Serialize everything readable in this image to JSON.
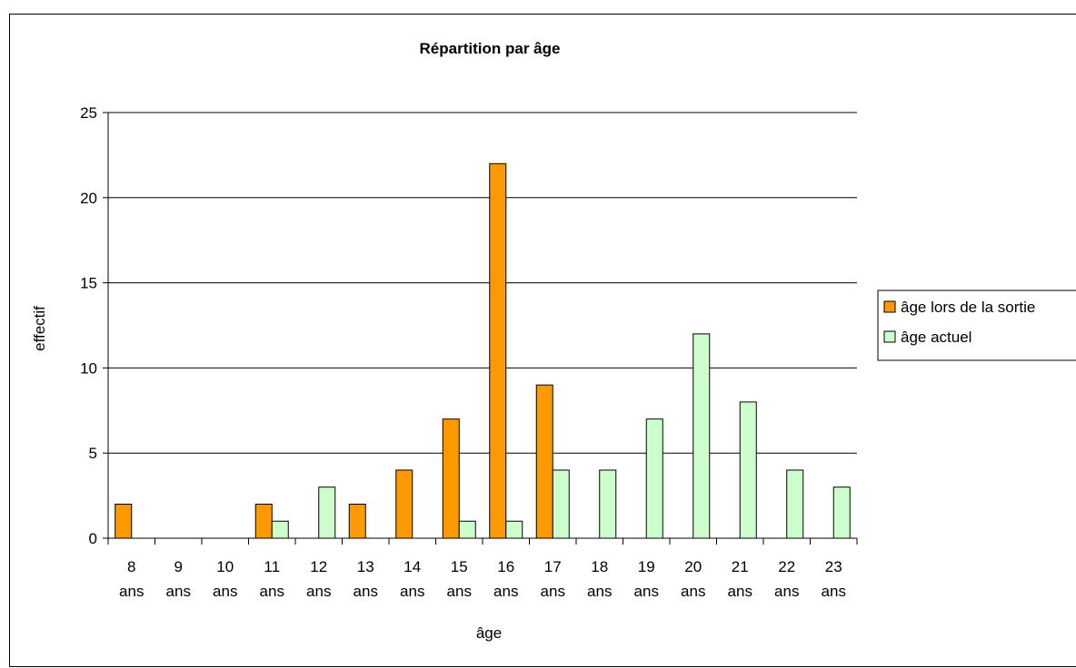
{
  "chart_data": {
    "type": "bar",
    "title": "Répartition par âge",
    "xlabel": "âge",
    "ylabel": "effectif",
    "ylim": [
      0,
      25
    ],
    "yticks": [
      0,
      5,
      10,
      15,
      20,
      25
    ],
    "categories": [
      {
        "num": "8",
        "unit": "ans"
      },
      {
        "num": "9",
        "unit": "ans"
      },
      {
        "num": "10",
        "unit": "ans"
      },
      {
        "num": "11",
        "unit": "ans"
      },
      {
        "num": "12",
        "unit": "ans"
      },
      {
        "num": "13",
        "unit": "ans"
      },
      {
        "num": "14",
        "unit": "ans"
      },
      {
        "num": "15",
        "unit": "ans"
      },
      {
        "num": "16",
        "unit": "ans"
      },
      {
        "num": "17",
        "unit": "ans"
      },
      {
        "num": "18",
        "unit": "ans"
      },
      {
        "num": "19",
        "unit": "ans"
      },
      {
        "num": "20",
        "unit": "ans"
      },
      {
        "num": "21",
        "unit": "ans"
      },
      {
        "num": "22",
        "unit": "ans"
      },
      {
        "num": "23",
        "unit": "ans"
      }
    ],
    "series": [
      {
        "name": "âge lors de la sortie",
        "color": "#FF9900",
        "values": [
          2,
          0,
          0,
          2,
          0,
          2,
          4,
          7,
          22,
          9,
          0,
          0,
          0,
          0,
          0,
          0
        ]
      },
      {
        "name": "âge actuel",
        "color": "#CCFFCC",
        "values": [
          0,
          0,
          0,
          1,
          3,
          0,
          0,
          1,
          1,
          4,
          4,
          7,
          12,
          8,
          4,
          3
        ]
      }
    ],
    "grid": true,
    "legend": "right"
  }
}
